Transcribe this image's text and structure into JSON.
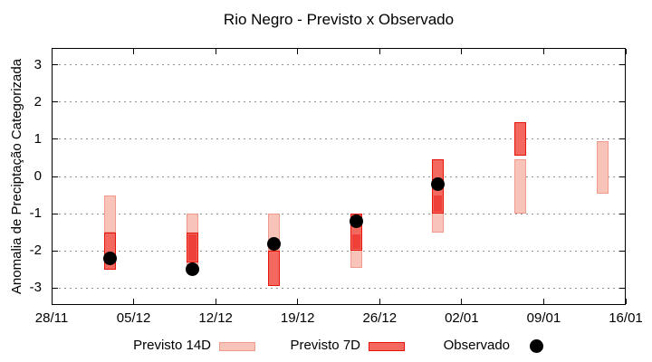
{
  "chart_data": {
    "type": "candlestick-range",
    "title": "Rio Negro - Previsto x Observado",
    "ylabel": "Anomalia de Preciptação Categorizada",
    "xlabel": "",
    "ylim": [
      -3.45,
      3.45
    ],
    "grid": "horizontal-dotted",
    "legend_position": "bottom",
    "y_ticks": [
      3,
      2,
      1,
      0,
      -1,
      -2,
      -3
    ],
    "x_span_days": 49,
    "x_ticks": [
      {
        "label": "28/11",
        "day": 0
      },
      {
        "label": "05/12",
        "day": 7
      },
      {
        "label": "12/12",
        "day": 14
      },
      {
        "label": "19/12",
        "day": 21
      },
      {
        "label": "26/12",
        "day": 28
      },
      {
        "label": "02/01",
        "day": 35
      },
      {
        "label": "09/01",
        "day": 42
      },
      {
        "label": "16/01",
        "day": 49
      }
    ],
    "points": [
      {
        "date": "03/12",
        "day": 5,
        "previsto_14d": {
          "top": -0.5,
          "bottom": -1.5
        },
        "previsto_7d": {
          "top": -1.5,
          "bottom": -2.5
        },
        "observado": -2.2
      },
      {
        "date": "10/12",
        "day": 12,
        "previsto_14d": {
          "top": -1.0,
          "bottom": -2.45
        },
        "previsto_7d": {
          "top": -1.5,
          "bottom": -2.3
        },
        "observado": -2.5
      },
      {
        "date": "17/12",
        "day": 19,
        "previsto_14d": {
          "top": -1.0,
          "bottom": -2.0
        },
        "previsto_7d": {
          "top": -2.0,
          "bottom": -2.95
        },
        "observado": -1.8
      },
      {
        "date": "24/12",
        "day": 26,
        "previsto_14d": {
          "top": -1.55,
          "bottom": -2.45
        },
        "previsto_7d": {
          "top": -1.0,
          "bottom": -2.0
        },
        "observado": -1.2
      },
      {
        "date": "31/12",
        "day": 33,
        "previsto_14d": {
          "top": -0.5,
          "bottom": -1.5
        },
        "previsto_7d": {
          "top": 0.45,
          "bottom": -1.0
        },
        "observado": -0.2
      },
      {
        "date": "07/01",
        "day": 40,
        "previsto_14d": {
          "top": 0.45,
          "bottom": -1.0
        },
        "previsto_7d": {
          "top": 1.45,
          "bottom": 0.55
        },
        "observado": null
      },
      {
        "date": "14/01",
        "day": 47,
        "previsto_14d": {
          "top": 0.95,
          "bottom": -0.45
        },
        "previsto_7d": null,
        "observado": null
      }
    ],
    "legend": [
      {
        "label": "Previsto 14D",
        "swatch": "box-light-pink"
      },
      {
        "label": "Previsto 7D",
        "swatch": "box-red"
      },
      {
        "label": "Observado",
        "swatch": "dot-black"
      }
    ],
    "colors": {
      "previsto_14d_fill": "#f8c3b9",
      "previsto_14d_border": "#ef9a8c",
      "previsto_7d_fill": "#f4695f",
      "previsto_7d_border": "#e6150b",
      "overlap_fill": "#ee4038",
      "observado": "#000000",
      "grid": "#909090",
      "axis": "#000000"
    }
  }
}
